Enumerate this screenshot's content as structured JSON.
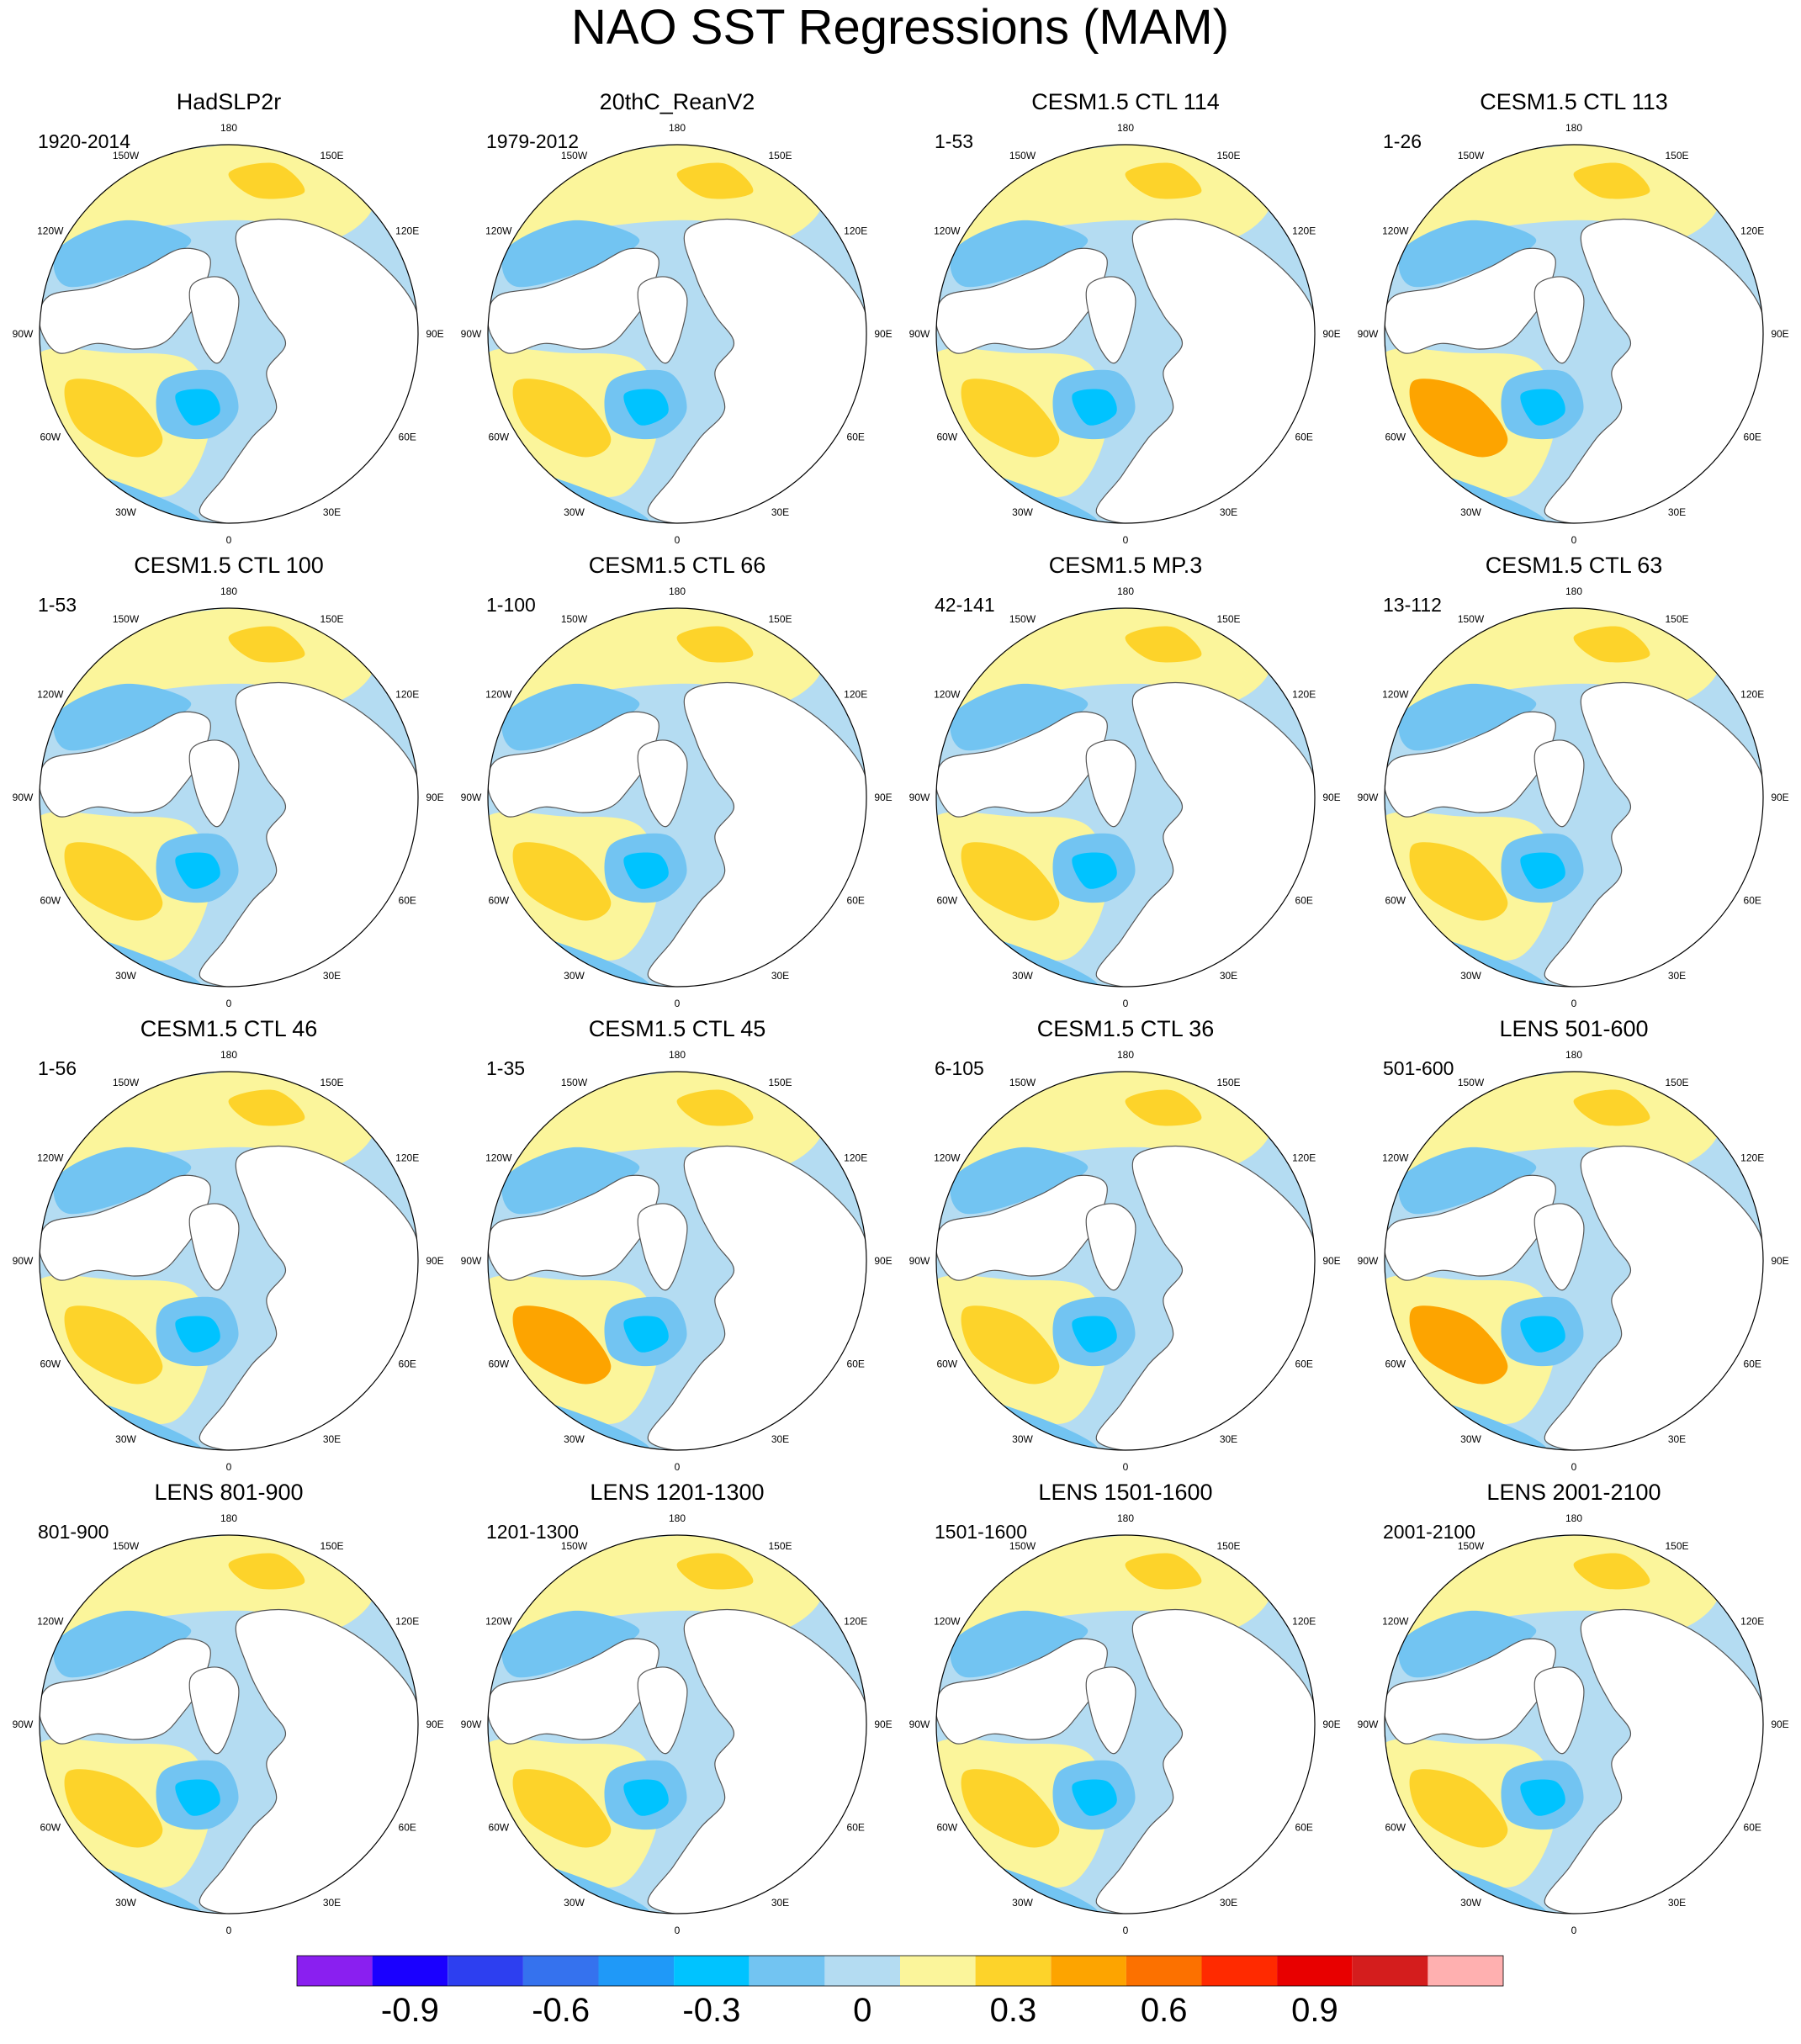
{
  "figure": {
    "title": "NAO SST Regressions (MAM)"
  },
  "lon_labels": [
    "180",
    "150E",
    "120E",
    "90E",
    "60E",
    "30E",
    "0",
    "30W",
    "60W",
    "90W",
    "120W",
    "150W"
  ],
  "panels": [
    {
      "title": "HadSLP2r",
      "period": "1920-2014"
    },
    {
      "title": "20thC_ReanV2",
      "period": "1979-2012"
    },
    {
      "title": "CESM1.5 CTL 114",
      "period": "1-53"
    },
    {
      "title": "CESM1.5 CTL 113",
      "period": "1-26"
    },
    {
      "title": "CESM1.5 CTL 100",
      "period": "1-53"
    },
    {
      "title": "CESM1.5 CTL 66",
      "period": "1-100"
    },
    {
      "title": "CESM1.5 MP.3",
      "period": "42-141"
    },
    {
      "title": "CESM1.5 CTL 63",
      "period": "13-112"
    },
    {
      "title": "CESM1.5 CTL 46",
      "period": "1-56"
    },
    {
      "title": "CESM1.5 CTL 45",
      "period": "1-35"
    },
    {
      "title": "CESM1.5 CTL 36",
      "period": "6-105"
    },
    {
      "title": "LENS 501-600",
      "period": "501-600"
    },
    {
      "title": "LENS 801-900",
      "period": "801-900"
    },
    {
      "title": "LENS 1201-1300",
      "period": "1201-1300"
    },
    {
      "title": "LENS 1501-1600",
      "period": "1501-1600"
    },
    {
      "title": "LENS 2001-2100",
      "period": "2001-2100"
    }
  ],
  "chart_data": {
    "type": "heatmap",
    "projection": "north polar stereographic",
    "layout": "4 x 4 panels",
    "colorbar": {
      "colors": [
        "#8a1ff0",
        "#1a00ff",
        "#2d3ff0",
        "#3572ee",
        "#1f99f8",
        "#00c3ff",
        "#72c4f2",
        "#b4dcf2",
        "#fbf59b",
        "#fdd32a",
        "#fda400",
        "#fc7100",
        "#ff2a00",
        "#e80000",
        "#d41d1d",
        "#ffb0b0"
      ],
      "tick_labels": [
        "-0.9",
        "-0.6",
        "-0.3",
        "0",
        "0.3",
        "0.6",
        "0.9"
      ],
      "tick_values": [
        -0.9,
        -0.6,
        -0.3,
        0,
        0.3,
        0.6,
        0.9
      ]
    }
  }
}
